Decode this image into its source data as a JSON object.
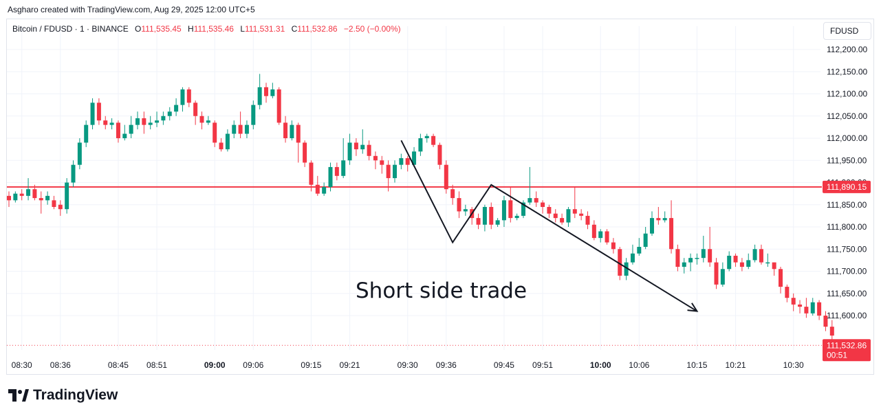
{
  "header": {
    "attribution": "Asgharo created with TradingView.com, Aug 29, 2025 12:00 UTC+5"
  },
  "legend": {
    "symbol": "Bitcoin / FDUSD · 1 · BINANCE",
    "open_label": "O",
    "open": "111,535.45",
    "high_label": "H",
    "high": "111,535.46",
    "low_label": "L",
    "low": "111,531.31",
    "close_label": "C",
    "close": "111,532.86",
    "change": "−2.50 (−0.00%)"
  },
  "currency_button": "FDUSD",
  "annotation_text": "Short side trade",
  "brand": {
    "name": "TradingView"
  },
  "colors": {
    "up": "#089981",
    "down": "#f23645",
    "level_line": "#f23645",
    "grid": "#f0f3fa",
    "text": "#131722"
  },
  "chart_data": {
    "type": "candlestick",
    "y_axis": {
      "range": [
        111500,
        112250
      ],
      "ticks": [
        {
          "value": 112200,
          "label": "112,200.00"
        },
        {
          "value": 112150,
          "label": "112,150.00"
        },
        {
          "value": 112100,
          "label": "112,100.00"
        },
        {
          "value": 112050,
          "label": "112,050.00"
        },
        {
          "value": 112000,
          "label": "112,000.00"
        },
        {
          "value": 111950,
          "label": "111,950.00"
        },
        {
          "value": 111900,
          "label": "111,900.00"
        },
        {
          "value": 111850,
          "label": "111,850.00"
        },
        {
          "value": 111800,
          "label": "111,800.00"
        },
        {
          "value": 111750,
          "label": "111,750.00"
        },
        {
          "value": 111700,
          "label": "111,700.00"
        },
        {
          "value": 111650,
          "label": "111,650.00"
        },
        {
          "value": 111600,
          "label": "111,600.00"
        }
      ]
    },
    "x_axis": {
      "ticks": [
        {
          "label": "08:30",
          "index": 2,
          "bold": false
        },
        {
          "label": "08:36",
          "index": 8,
          "bold": false
        },
        {
          "label": "08:45",
          "index": 17,
          "bold": false
        },
        {
          "label": "08:51",
          "index": 23,
          "bold": false
        },
        {
          "label": "09:00",
          "index": 32,
          "bold": true
        },
        {
          "label": "09:06",
          "index": 38,
          "bold": false
        },
        {
          "label": "09:15",
          "index": 47,
          "bold": false
        },
        {
          "label": "09:21",
          "index": 53,
          "bold": false
        },
        {
          "label": "09:30",
          "index": 62,
          "bold": false
        },
        {
          "label": "09:36",
          "index": 68,
          "bold": false
        },
        {
          "label": "09:45",
          "index": 77,
          "bold": false
        },
        {
          "label": "09:51",
          "index": 83,
          "bold": false
        },
        {
          "label": "10:00",
          "index": 92,
          "bold": true
        },
        {
          "label": "10:06",
          "index": 98,
          "bold": false
        },
        {
          "label": "10:15",
          "index": 107,
          "bold": false
        },
        {
          "label": "10:21",
          "index": 113,
          "bold": false
        },
        {
          "label": "10:30",
          "index": 122,
          "bold": false
        }
      ]
    },
    "horizontal_level": {
      "value": 111890.15,
      "label": "111,890.15"
    },
    "last_price": {
      "value": 111532.86,
      "label": "111,532.86",
      "countdown": "00:51"
    },
    "drawing_zigzag": [
      [
        111995,
        61
      ],
      [
        111765,
        69
      ],
      [
        111895,
        75
      ],
      [
        111610,
        107
      ]
    ],
    "candles": [
      [
        111870,
        111860,
        111880,
        111845
      ],
      [
        111860,
        111875,
        111880,
        111855
      ],
      [
        111875,
        111870,
        111885,
        111860
      ],
      [
        111870,
        111885,
        111910,
        111860
      ],
      [
        111885,
        111865,
        111895,
        111860
      ],
      [
        111865,
        111860,
        111880,
        111830
      ],
      [
        111860,
        111870,
        111880,
        111850
      ],
      [
        111860,
        111845,
        111870,
        111840
      ],
      [
        111850,
        111840,
        111860,
        111825
      ],
      [
        111840,
        111900,
        111910,
        111830
      ],
      [
        111900,
        111940,
        111950,
        111890
      ],
      [
        111940,
        111990,
        112000,
        111930
      ],
      [
        111990,
        112030,
        112040,
        111980
      ],
      [
        112030,
        112080,
        112090,
        112020
      ],
      [
        112080,
        112040,
        112090,
        112030
      ],
      [
        112040,
        112030,
        112050,
        112020
      ],
      [
        112030,
        112035,
        112045,
        112020
      ],
      [
        112035,
        112000,
        112040,
        111990
      ],
      [
        112000,
        112010,
        112030,
        111995
      ],
      [
        112010,
        112030,
        112050,
        112000
      ],
      [
        112030,
        112045,
        112060,
        112020
      ],
      [
        112045,
        112030,
        112060,
        112010
      ],
      [
        112030,
        112035,
        112050,
        112020
      ],
      [
        112035,
        112040,
        112060,
        112025
      ],
      [
        112040,
        112050,
        112060,
        112030
      ],
      [
        112050,
        112060,
        112070,
        112040
      ],
      [
        112060,
        112075,
        112090,
        112050
      ],
      [
        112075,
        112110,
        112115,
        112060
      ],
      [
        112110,
        112080,
        112115,
        112070
      ],
      [
        112080,
        112050,
        112085,
        112030
      ],
      [
        112050,
        112035,
        112060,
        112020
      ],
      [
        112035,
        112040,
        112050,
        112030
      ],
      [
        112035,
        111990,
        112040,
        111980
      ],
      [
        111990,
        111975,
        112000,
        111970
      ],
      [
        111975,
        112010,
        112020,
        111970
      ],
      [
        112010,
        112030,
        112040,
        112000
      ],
      [
        112030,
        112010,
        112060,
        112000
      ],
      [
        112010,
        112030,
        112040,
        112000
      ],
      [
        112030,
        112075,
        112085,
        112020
      ],
      [
        112075,
        112115,
        112145,
        112065
      ],
      [
        112115,
        112095,
        112125,
        112080
      ],
      [
        112095,
        112110,
        112125,
        112090
      ],
      [
        112110,
        112035,
        112115,
        112030
      ],
      [
        112035,
        112000,
        112050,
        111990
      ],
      [
        112000,
        112030,
        112040,
        111995
      ],
      [
        112030,
        111990,
        112035,
        111945
      ],
      [
        111990,
        111945,
        111995,
        111935
      ],
      [
        111945,
        111895,
        111950,
        111880
      ],
      [
        111895,
        111875,
        111915,
        111870
      ],
      [
        111875,
        111890,
        111900,
        111870
      ],
      [
        111890,
        111935,
        111945,
        111880
      ],
      [
        111935,
        111915,
        111945,
        111905
      ],
      [
        111915,
        111950,
        112000,
        111910
      ],
      [
        111950,
        111990,
        112010,
        111940
      ],
      [
        111990,
        111975,
        112000,
        111960
      ],
      [
        111975,
        111985,
        112020,
        111965
      ],
      [
        111985,
        111960,
        111995,
        111950
      ],
      [
        111960,
        111950,
        111970,
        111930
      ],
      [
        111950,
        111940,
        111960,
        111920
      ],
      [
        111940,
        111910,
        111950,
        111880
      ],
      [
        111910,
        111940,
        111950,
        111900
      ],
      [
        111940,
        111955,
        111965,
        111930
      ],
      [
        111955,
        111940,
        111960,
        111925
      ],
      [
        111940,
        111970,
        111980,
        111935
      ],
      [
        111970,
        112000,
        112010,
        111960
      ],
      [
        112000,
        112005,
        112010,
        111990
      ],
      [
        112005,
        111985,
        112010,
        111980
      ],
      [
        111985,
        111940,
        111990,
        111930
      ],
      [
        111940,
        111885,
        111950,
        111875
      ],
      [
        111885,
        111865,
        111895,
        111850
      ],
      [
        111865,
        111835,
        111880,
        111820
      ],
      [
        111835,
        111840,
        111850,
        111825
      ],
      [
        111840,
        111820,
        111845,
        111805
      ],
      [
        111820,
        111805,
        111830,
        111795
      ],
      [
        111805,
        111845,
        111850,
        111790
      ],
      [
        111845,
        111805,
        111855,
        111795
      ],
      [
        111805,
        111815,
        111820,
        111800
      ],
      [
        111815,
        111860,
        111870,
        111800
      ],
      [
        111860,
        111820,
        111890,
        111810
      ],
      [
        111820,
        111825,
        111830,
        111815
      ],
      [
        111825,
        111855,
        111860,
        111820
      ],
      [
        111855,
        111865,
        111935,
        111850
      ],
      [
        111865,
        111855,
        111880,
        111845
      ],
      [
        111855,
        111845,
        111860,
        111830
      ],
      [
        111845,
        111830,
        111850,
        111820
      ],
      [
        111830,
        111820,
        111840,
        111810
      ],
      [
        111820,
        111810,
        111830,
        111805
      ],
      [
        111810,
        111840,
        111845,
        111800
      ],
      [
        111840,
        111830,
        111890,
        111820
      ],
      [
        111830,
        111825,
        111840,
        111815
      ],
      [
        111825,
        111805,
        111835,
        111795
      ],
      [
        111805,
        111775,
        111815,
        111770
      ],
      [
        111775,
        111790,
        111795,
        111765
      ],
      [
        111790,
        111765,
        111795,
        111760
      ],
      [
        111765,
        111750,
        111775,
        111740
      ],
      [
        111750,
        111690,
        111755,
        111680
      ],
      [
        111690,
        111720,
        111730,
        111680
      ],
      [
        111720,
        111740,
        111760,
        111715
      ],
      [
        111740,
        111755,
        111775,
        111735
      ],
      [
        111755,
        111785,
        111800,
        111750
      ],
      [
        111785,
        111820,
        111835,
        111780
      ],
      [
        111820,
        111815,
        111845,
        111805
      ],
      [
        111815,
        111820,
        111835,
        111810
      ],
      [
        111820,
        111750,
        111860,
        111740
      ],
      [
        111750,
        111710,
        111760,
        111700
      ],
      [
        111710,
        111720,
        111730,
        111695
      ],
      [
        111720,
        111730,
        111740,
        111700
      ],
      [
        111730,
        111730,
        111740,
        111715
      ],
      [
        111730,
        111750,
        111780,
        111720
      ],
      [
        111750,
        111720,
        111800,
        111710
      ],
      [
        111720,
        111670,
        111730,
        111660
      ],
      [
        111670,
        111705,
        111720,
        111665
      ],
      [
        111705,
        111735,
        111745,
        111700
      ],
      [
        111735,
        111720,
        111740,
        111710
      ],
      [
        111720,
        111710,
        111730,
        111700
      ],
      [
        111710,
        111725,
        111740,
        111705
      ],
      [
        111725,
        111750,
        111760,
        111720
      ],
      [
        111750,
        111720,
        111760,
        111715
      ],
      [
        111720,
        111720,
        111740,
        111710
      ],
      [
        111720,
        111705,
        111720,
        111690
      ],
      [
        111705,
        111665,
        111710,
        111650
      ],
      [
        111665,
        111640,
        111670,
        111630
      ],
      [
        111640,
        111625,
        111650,
        111610
      ],
      [
        111625,
        111620,
        111635,
        111605
      ],
      [
        111620,
        111605,
        111640,
        111595
      ],
      [
        111605,
        111630,
        111640,
        111600
      ],
      [
        111630,
        111600,
        111635,
        111590
      ],
      [
        111600,
        111575,
        111610,
        111565
      ],
      [
        111575,
        111555,
        111590,
        111545
      ]
    ]
  }
}
